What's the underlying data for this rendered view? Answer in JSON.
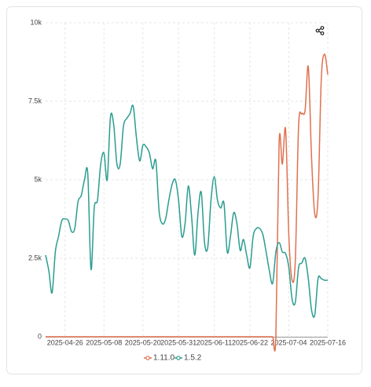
{
  "chart_data": {
    "type": "line",
    "x": [
      "2025-04-20",
      "2025-04-21",
      "2025-04-22",
      "2025-04-23",
      "2025-04-24",
      "2025-04-25",
      "2025-04-26",
      "2025-04-27",
      "2025-04-28",
      "2025-04-29",
      "2025-04-30",
      "2025-05-01",
      "2025-05-02",
      "2025-05-03",
      "2025-05-04",
      "2025-05-05",
      "2025-05-06",
      "2025-05-07",
      "2025-05-08",
      "2025-05-09",
      "2025-05-10",
      "2025-05-11",
      "2025-05-12",
      "2025-05-13",
      "2025-05-14",
      "2025-05-15",
      "2025-05-16",
      "2025-05-17",
      "2025-05-18",
      "2025-05-19",
      "2025-05-20",
      "2025-05-21",
      "2025-05-22",
      "2025-05-23",
      "2025-05-24",
      "2025-05-25",
      "2025-05-26",
      "2025-05-27",
      "2025-05-28",
      "2025-05-29",
      "2025-05-30",
      "2025-05-31",
      "2025-06-01",
      "2025-06-02",
      "2025-06-03",
      "2025-06-04",
      "2025-06-05",
      "2025-06-06",
      "2025-06-07",
      "2025-06-08",
      "2025-06-09",
      "2025-06-10",
      "2025-06-11",
      "2025-06-12",
      "2025-06-13",
      "2025-06-14",
      "2025-06-15",
      "2025-06-16",
      "2025-06-17",
      "2025-06-18",
      "2025-06-19",
      "2025-06-20",
      "2025-06-21",
      "2025-06-22",
      "2025-06-23",
      "2025-06-24",
      "2025-06-25",
      "2025-06-26",
      "2025-06-27",
      "2025-06-28",
      "2025-06-29",
      "2025-06-30",
      "2025-07-01",
      "2025-07-02",
      "2025-07-03",
      "2025-07-04",
      "2025-07-05",
      "2025-07-06",
      "2025-07-07",
      "2025-07-08",
      "2025-07-09",
      "2025-07-10",
      "2025-07-11",
      "2025-07-12",
      "2025-07-13",
      "2025-07-14",
      "2025-07-15",
      "2025-07-16"
    ],
    "series": [
      {
        "name": "1.11.0",
        "color": "#e0714f",
        "values": [
          0,
          0,
          0,
          0,
          0,
          0,
          0,
          0,
          0,
          0,
          0,
          0,
          0,
          0,
          0,
          0,
          0,
          0,
          0,
          0,
          0,
          0,
          0,
          0,
          0,
          0,
          0,
          0,
          0,
          0,
          0,
          0,
          0,
          0,
          0,
          0,
          0,
          0,
          0,
          0,
          0,
          0,
          0,
          0,
          0,
          0,
          0,
          0,
          0,
          0,
          0,
          0,
          0,
          0,
          0,
          0,
          0,
          0,
          0,
          0,
          0,
          0,
          0,
          0,
          0,
          0,
          0,
          0,
          0,
          0,
          0,
          0,
          6200,
          5500,
          6600,
          3200,
          1800,
          2450,
          6700,
          7100,
          7200,
          8600,
          5700,
          3900,
          4450,
          8200,
          9000,
          8350
        ]
      },
      {
        "name": "1.5.2",
        "color": "#2a9d8f",
        "values": [
          2600,
          2100,
          1400,
          2700,
          3200,
          3700,
          3750,
          3700,
          3350,
          3450,
          4300,
          4500,
          5000,
          5200,
          2150,
          4100,
          4350,
          5500,
          5850,
          5000,
          7000,
          6750,
          5500,
          5500,
          6700,
          6950,
          7100,
          7350,
          6350,
          5600,
          6100,
          6050,
          5850,
          5350,
          5600,
          4000,
          3600,
          3750,
          4350,
          4850,
          5000,
          4350,
          3200,
          3600,
          4800,
          3850,
          2600,
          3950,
          4600,
          3000,
          2850,
          4350,
          5100,
          4350,
          4100,
          4250,
          2700,
          3200,
          3950,
          3600,
          2750,
          3100,
          2600,
          2200,
          3200,
          3450,
          3450,
          3250,
          2700,
          2100,
          1700,
          2700,
          3000,
          2700,
          2650,
          2200,
          1200,
          1100,
          2200,
          2350,
          2500,
          1850,
          850,
          700,
          1850,
          1850,
          1800,
          1800
        ]
      }
    ],
    "xlim": [
      "2025-04-20",
      "2025-07-16"
    ],
    "xticks": [
      "2025-04-26",
      "2025-05-08",
      "2025-05-20",
      "2025-05-31",
      "2025-06-11",
      "2025-06-22",
      "2025-07-04",
      "2025-07-16"
    ],
    "ylim": [
      0,
      10000
    ],
    "yticks": [
      0,
      {
        "value": 2500,
        "label": "2.5k"
      },
      {
        "value": 5000,
        "label": "5k"
      },
      {
        "value": 7500,
        "label": "7.5k"
      },
      {
        "value": 10000,
        "label": "10k"
      }
    ],
    "grid": true
  }
}
